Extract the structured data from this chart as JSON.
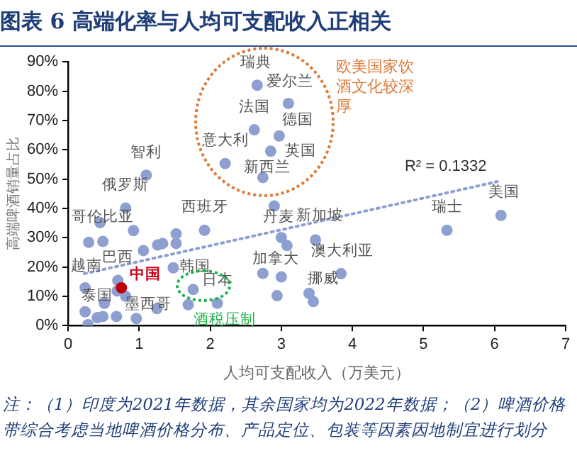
{
  "chart_data": {
    "type": "scatter",
    "title": "图表 6 高端化率与人均可支配收入正相关",
    "xlabel": "人均可支配收入（万美元）",
    "ylabel": "高端啤酒销量占比",
    "xlim": [
      0,
      7
    ],
    "xticks": [
      0,
      1,
      2,
      3,
      4,
      5,
      6,
      7
    ],
    "ylim": [
      0,
      90
    ],
    "yticks": [
      {
        "value": 0,
        "label": "0%"
      },
      {
        "value": 10,
        "label": "10%"
      },
      {
        "value": 20,
        "label": "20%"
      },
      {
        "value": 30,
        "label": "30%"
      },
      {
        "value": 40,
        "label": "40%"
      },
      {
        "value": 50,
        "label": "50%"
      },
      {
        "value": 60,
        "label": "60%"
      },
      {
        "value": 70,
        "label": "70%"
      },
      {
        "value": 80,
        "label": "80%"
      },
      {
        "value": 90,
        "label": "90%"
      }
    ],
    "grid": false,
    "legend": false,
    "marker": "circle",
    "series": [
      {
        "color": "#8e9fd1",
        "x": [
          2.66,
          3.1,
          2.62,
          2.97,
          2.85,
          2.21,
          2.74,
          1.1,
          0.81,
          0.45,
          0.92,
          0.29,
          0.49,
          1.06,
          1.26,
          1.33,
          1.52,
          1.52,
          1.92,
          2.9,
          1.48,
          0.7,
          0.24,
          0.69,
          0.81,
          1.76,
          0.51,
          1.69,
          2.1,
          1.25,
          0.24,
          0.41,
          0.49,
          0.68,
          0.96,
          0.28,
          2.74,
          3.0,
          2.94,
          3.0,
          3.08,
          3.39,
          3.48,
          3.84,
          3.45,
          5.33,
          6.09
        ],
        "values": [
          82,
          75.8,
          66.8,
          64.7,
          59.5,
          55.3,
          50.5,
          51.3,
          40.1,
          35.1,
          32.4,
          28.4,
          28.7,
          25.6,
          27.5,
          28,
          31.3,
          28,
          32.5,
          40.8,
          19.7,
          15.4,
          12.9,
          11.8,
          10,
          12.3,
          7.6,
          7.1,
          7.6,
          5.8,
          4.7,
          2.7,
          3.1,
          3.1,
          2.4,
          0.3,
          17.8,
          16.6,
          10.2,
          30,
          27.3,
          11,
          29.2,
          17.7,
          8.2,
          32.5,
          37.6
        ]
      },
      {
        "color": "#c00000",
        "x": [
          0.75
        ],
        "values": [
          12.9
        ]
      },
      {
        "type": "line",
        "color": "#8e9fd1",
        "line_style": "dotted",
        "marker": "none",
        "x": [
          0.23,
          6.09
        ],
        "values": [
          17.7,
          49.4
        ]
      }
    ],
    "annotations": [
      {
        "text": "瑞典",
        "x": 2.66,
        "y": 82
      },
      {
        "text": "爱尔兰",
        "x": 3.1,
        "y": 75.8
      },
      {
        "text": "法国",
        "x": 2.62,
        "y": 66.8
      },
      {
        "text": "德国",
        "x": 2.97,
        "y": 64.7
      },
      {
        "text": "意大利",
        "x": 2.21,
        "y": 55.3
      },
      {
        "text": "英国",
        "x": 2.85,
        "y": 59.5
      },
      {
        "text": "新西兰",
        "x": 2.74,
        "y": 50.5
      },
      {
        "text": "智利",
        "x": 1.1,
        "y": 51.3
      },
      {
        "text": "俄罗斯",
        "x": 0.81,
        "y": 40.1
      },
      {
        "text": "哥伦比亚",
        "x": 0.45,
        "y": 35.1
      },
      {
        "text": "西班牙",
        "x": 1.92,
        "y": 32.5
      },
      {
        "text": "巴西",
        "x": 0.7,
        "y": 15.4
      },
      {
        "text": "中国",
        "x": 0.75,
        "y": 12.9
      },
      {
        "text": "越南",
        "x": 0.24,
        "y": 12.9
      },
      {
        "text": "韩国",
        "x": 1.76,
        "y": 12.3
      },
      {
        "text": "日本",
        "x": 2.1,
        "y": 7.6
      },
      {
        "text": "泰国",
        "x": 0.51,
        "y": 7.6
      },
      {
        "text": "墨西哥",
        "x": 1.25,
        "y": 5.8
      },
      {
        "text": "酒税压制",
        "x": 2.1,
        "y": 7.6
      },
      {
        "text": "丹麦",
        "x": 2.9,
        "y": 40.8
      },
      {
        "text": "新加坡",
        "x": 3.48,
        "y": 29.2
      },
      {
        "text": "加拿大",
        "x": 2.74,
        "y": 17.8
      },
      {
        "text": "澳大利亚",
        "x": 3.84,
        "y": 17.7
      },
      {
        "text": "挪威",
        "x": 3.39,
        "y": 11
      },
      {
        "text": "瑞士",
        "x": 5.33,
        "y": 32.5
      },
      {
        "text": "美国",
        "x": 6.09,
        "y": 37.6
      },
      {
        "text": "R² = 0.1332",
        "x": 6.09,
        "y": 49.4
      },
      "欧美国家饮酒文化较深厚",
      "注：（1）印度为2021年数据，其余国家均为2022年数据；（2）啤酒价格带综合考虑当地啤酒价格分布、产品定位、包装等因素因地制宜进行划分"
    ]
  }
}
